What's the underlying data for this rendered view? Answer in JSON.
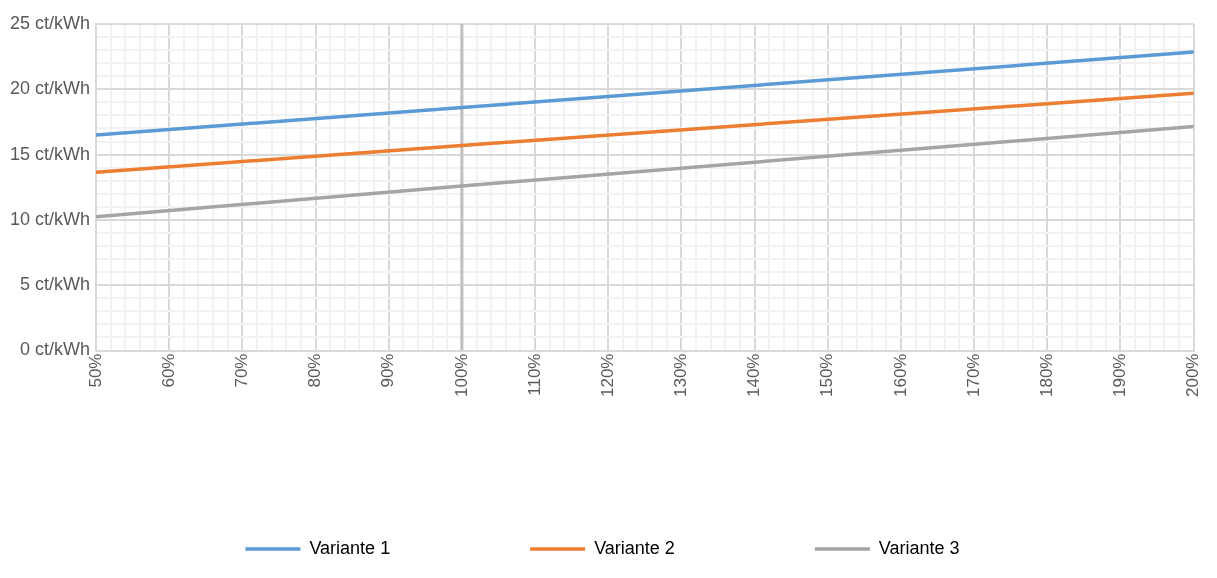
{
  "chart_data": {
    "type": "line",
    "x": [
      50,
      100,
      200
    ],
    "xlim": [
      50,
      200
    ],
    "xticks": [
      {
        "value": 50,
        "label": "50%"
      },
      {
        "value": 52,
        "label": null
      },
      {
        "value": 54,
        "label": null
      },
      {
        "value": 56,
        "label": null
      },
      {
        "value": 58,
        "label": null
      },
      {
        "value": 60,
        "label": "60%"
      },
      {
        "value": 62,
        "label": null
      },
      {
        "value": 64,
        "label": null
      },
      {
        "value": 66,
        "label": null
      },
      {
        "value": 68,
        "label": null
      },
      {
        "value": 70,
        "label": "70%"
      },
      {
        "value": 72,
        "label": null
      },
      {
        "value": 74,
        "label": null
      },
      {
        "value": 76,
        "label": null
      },
      {
        "value": 78,
        "label": null
      },
      {
        "value": 80,
        "label": "80%"
      },
      {
        "value": 82,
        "label": null
      },
      {
        "value": 84,
        "label": null
      },
      {
        "value": 86,
        "label": null
      },
      {
        "value": 88,
        "label": null
      },
      {
        "value": 90,
        "label": "90%"
      },
      {
        "value": 92,
        "label": null
      },
      {
        "value": 94,
        "label": null
      },
      {
        "value": 96,
        "label": null
      },
      {
        "value": 98,
        "label": null
      },
      {
        "value": 100,
        "label": "100%"
      },
      {
        "value": 102,
        "label": null
      },
      {
        "value": 104,
        "label": null
      },
      {
        "value": 106,
        "label": null
      },
      {
        "value": 108,
        "label": null
      },
      {
        "value": 110,
        "label": "110%"
      },
      {
        "value": 112,
        "label": null
      },
      {
        "value": 114,
        "label": null
      },
      {
        "value": 116,
        "label": null
      },
      {
        "value": 118,
        "label": null
      },
      {
        "value": 120,
        "label": "120%"
      },
      {
        "value": 122,
        "label": null
      },
      {
        "value": 124,
        "label": null
      },
      {
        "value": 126,
        "label": null
      },
      {
        "value": 128,
        "label": null
      },
      {
        "value": 130,
        "label": "130%"
      },
      {
        "value": 132,
        "label": null
      },
      {
        "value": 134,
        "label": null
      },
      {
        "value": 136,
        "label": null
      },
      {
        "value": 138,
        "label": null
      },
      {
        "value": 140,
        "label": "140%"
      },
      {
        "value": 142,
        "label": null
      },
      {
        "value": 144,
        "label": null
      },
      {
        "value": 146,
        "label": null
      },
      {
        "value": 148,
        "label": null
      },
      {
        "value": 150,
        "label": "150%"
      },
      {
        "value": 152,
        "label": null
      },
      {
        "value": 154,
        "label": null
      },
      {
        "value": 156,
        "label": null
      },
      {
        "value": 158,
        "label": null
      },
      {
        "value": 160,
        "label": "160%"
      },
      {
        "value": 162,
        "label": null
      },
      {
        "value": 164,
        "label": null
      },
      {
        "value": 166,
        "label": null
      },
      {
        "value": 168,
        "label": null
      },
      {
        "value": 170,
        "label": "170%"
      },
      {
        "value": 172,
        "label": null
      },
      {
        "value": 174,
        "label": null
      },
      {
        "value": 176,
        "label": null
      },
      {
        "value": 178,
        "label": null
      },
      {
        "value": 180,
        "label": "180%"
      },
      {
        "value": 182,
        "label": null
      },
      {
        "value": 184,
        "label": null
      },
      {
        "value": 186,
        "label": null
      },
      {
        "value": 188,
        "label": null
      },
      {
        "value": 190,
        "label": "190%"
      },
      {
        "value": 192,
        "label": null
      },
      {
        "value": 194,
        "label": null
      },
      {
        "value": 196,
        "label": null
      },
      {
        "value": 198,
        "label": null
      },
      {
        "value": 200,
        "label": "200%"
      }
    ],
    "ylim": [
      0,
      25
    ],
    "yticks": [
      {
        "value": 0,
        "label": "0 ct/kWh"
      },
      {
        "value": 1,
        "label": null
      },
      {
        "value": 2,
        "label": null
      },
      {
        "value": 3,
        "label": null
      },
      {
        "value": 4,
        "label": null
      },
      {
        "value": 5,
        "label": "5 ct/kWh"
      },
      {
        "value": 6,
        "label": null
      },
      {
        "value": 7,
        "label": null
      },
      {
        "value": 8,
        "label": null
      },
      {
        "value": 9,
        "label": null
      },
      {
        "value": 10,
        "label": "10 ct/kWh"
      },
      {
        "value": 11,
        "label": null
      },
      {
        "value": 12,
        "label": null
      },
      {
        "value": 13,
        "label": null
      },
      {
        "value": 14,
        "label": null
      },
      {
        "value": 15,
        "label": "15 ct/kWh"
      },
      {
        "value": 16,
        "label": null
      },
      {
        "value": 17,
        "label": null
      },
      {
        "value": 18,
        "label": null
      },
      {
        "value": 19,
        "label": null
      },
      {
        "value": 20,
        "label": "20 ct/kWh"
      },
      {
        "value": 21,
        "label": null
      },
      {
        "value": 22,
        "label": null
      },
      {
        "value": 23,
        "label": null
      },
      {
        "value": 24,
        "label": null
      },
      {
        "value": 25,
        "label": "25 ct/kWh"
      }
    ],
    "series": [
      {
        "name": "Variante 1",
        "color": "#5b9bd5",
        "values": [
          16.5,
          18.6,
          22.85
        ]
      },
      {
        "name": "Variante 2",
        "color": "#ed7d31",
        "values": [
          13.65,
          15.7,
          19.7
        ]
      },
      {
        "name": "Variante 3",
        "color": "#a5a5a5",
        "values": [
          10.25,
          12.6,
          17.15
        ]
      }
    ],
    "ref_lines": [
      {
        "axis": "x",
        "value": 100,
        "color": "#bfbfbf"
      }
    ],
    "grid": true,
    "legend": "bottom",
    "marker": "none",
    "line_style": "solid"
  }
}
